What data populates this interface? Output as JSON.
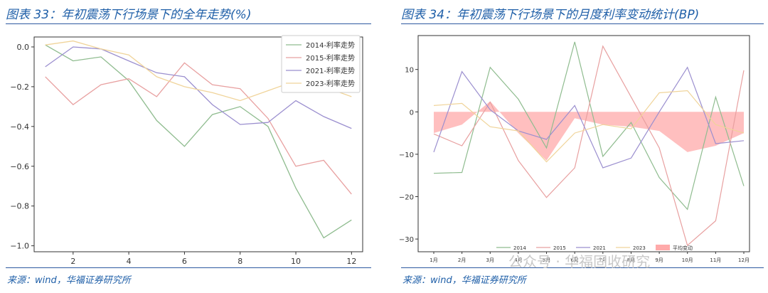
{
  "left": {
    "title": "图表 33：年初震荡下行场景下的全年走势(%)",
    "source": "来源：wind，华福证券研究所"
  },
  "right": {
    "title": "图表 34：年初震荡下行场景下的月度利率变动统计(BP)",
    "source": "来源：wind，华福证券研究所"
  },
  "watermark": "公众号 · 华福固收研究",
  "chart_data": [
    {
      "type": "line",
      "title": "年初震荡下行场景下的全年走势(%)",
      "x": [
        1,
        2,
        3,
        4,
        5,
        6,
        7,
        8,
        9,
        10,
        11,
        12
      ],
      "x_ticks": [
        2,
        4,
        6,
        8,
        10,
        12
      ],
      "y_ticks": [
        0.0,
        -0.2,
        -0.4,
        -0.6,
        -0.8,
        -1.0
      ],
      "y_tick_labels": [
        "0.0",
        "−0.2",
        "−0.4",
        "−0.6",
        "−0.8",
        "−1.0"
      ],
      "xlim": [
        0.6,
        12.4
      ],
      "ylim": [
        -1.03,
        0.05
      ],
      "legend_position": "top-right",
      "series": [
        {
          "name": "2014-利率走势",
          "color": "#8fbc8f",
          "values": [
            0.01,
            -0.07,
            -0.05,
            -0.17,
            -0.37,
            -0.5,
            -0.34,
            -0.3,
            -0.4,
            -0.71,
            -0.96,
            -0.87
          ]
        },
        {
          "name": "2015-利率走势",
          "color": "#e8a0a0",
          "values": [
            -0.15,
            -0.29,
            -0.19,
            -0.16,
            -0.25,
            -0.08,
            -0.19,
            -0.21,
            -0.36,
            -0.6,
            -0.57,
            -0.74
          ]
        },
        {
          "name": "2021-利率走势",
          "color": "#9b8fcf",
          "values": [
            -0.1,
            0.0,
            -0.01,
            -0.07,
            -0.13,
            -0.15,
            -0.29,
            -0.39,
            -0.38,
            -0.27,
            -0.35,
            -0.41
          ]
        },
        {
          "name": "2023-利率走势",
          "color": "#f0d49a",
          "values": [
            0.01,
            0.03,
            -0.01,
            -0.04,
            -0.15,
            -0.2,
            -0.23,
            -0.27,
            -0.22,
            -0.17,
            -0.2,
            -0.25
          ]
        }
      ]
    },
    {
      "type": "line",
      "title": "年初震荡下行场景下的月度利率变动统计(BP)",
      "categories": [
        "1月",
        "2月",
        "3月",
        "4月",
        "5月",
        "6月",
        "7月",
        "8月",
        "9月",
        "10月",
        "11月",
        "12月"
      ],
      "y_ticks": [
        10,
        0,
        -10,
        -20,
        -30
      ],
      "y_tick_labels": [
        "10",
        "0",
        "−10",
        "−20",
        "−30"
      ],
      "ylim": [
        -33,
        18
      ],
      "legend_position": "bottom",
      "series": [
        {
          "name": "2014",
          "color": "#8fbc8f",
          "values": [
            -14.5,
            -14.3,
            10.5,
            3.0,
            -8.5,
            16.5,
            -10.5,
            -2.5,
            -15.5,
            -23.0,
            3.5,
            -17.5
          ]
        },
        {
          "name": "2015",
          "color": "#e8a0a0",
          "values": [
            -5.2,
            -8.0,
            2.3,
            -11.5,
            -20.2,
            -13.2,
            15.5,
            3.5,
            -8.5,
            -31.5,
            -25.7,
            9.8
          ]
        },
        {
          "name": "2021",
          "color": "#9b8fcf",
          "values": [
            -9.5,
            9.5,
            0.5,
            -4.5,
            -6.5,
            1.5,
            -13.2,
            -10.9,
            0.0,
            10.5,
            -7.5,
            -6.8
          ]
        },
        {
          "name": "2023",
          "color": "#f0d49a",
          "values": [
            1.5,
            2.0,
            -3.5,
            -4.5,
            -11.8,
            -5.0,
            -3.0,
            -4.0,
            4.5,
            5.0,
            -3.0,
            -5.0
          ]
        },
        {
          "name": "平均变动",
          "color": "#ffaaaa",
          "type": "area",
          "values": [
            -5.0,
            -3.0,
            2.5,
            -5.0,
            -11.5,
            -1.5,
            -3.0,
            -3.5,
            -4.5,
            -9.5,
            -8.0,
            -5.0
          ]
        }
      ]
    }
  ]
}
